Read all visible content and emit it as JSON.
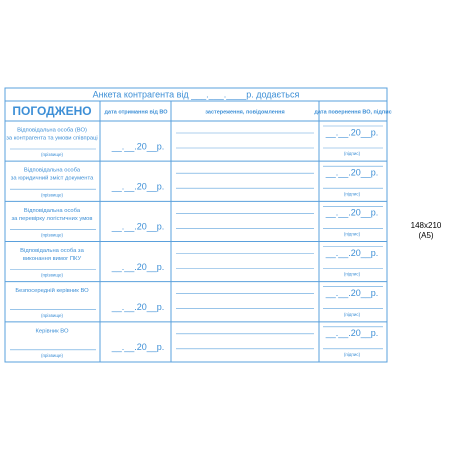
{
  "form": {
    "title": "Анкета контрагента від ___.___.____р. додається",
    "headers": [
      "ПОГОДЖЕНО",
      "дата отримання від ВО",
      "застереження, повідомлення",
      "дата повернення ВО, підпис"
    ],
    "rows": [
      {
        "label_lines": [
          "Відповідальна особа (ВО)",
          "за контрагента та умови співпраці"
        ],
        "surname_hint": "(прізвище)",
        "date": "__.__.20__р.",
        "return_date": "__.__.20__р.",
        "signature_hint": "(підпис)"
      },
      {
        "label_lines": [
          "Відповідальна особа",
          "за юридичний зміст документа"
        ],
        "surname_hint": "(прізвище)",
        "date": "__.__.20__р.",
        "return_date": "__.__.20__р.",
        "signature_hint": "(підпис)"
      },
      {
        "label_lines": [
          "Відповідальна особа",
          "за перевірку логістичних умов"
        ],
        "surname_hint": "(прізвище)",
        "date": "__.__.20__р.",
        "return_date": "__.__.20__р.",
        "signature_hint": "(підпис)"
      },
      {
        "label_lines": [
          "Відповідальна особа за",
          "виконання вимог ПКУ"
        ],
        "surname_hint": "(прізвище)",
        "date": "__.__.20__р.",
        "return_date": "__.__.20__р.",
        "signature_hint": "(підпис)"
      },
      {
        "label_lines": [
          "Безпосередній керівник ВО"
        ],
        "surname_hint": "(прізвище)",
        "date": "__.__.20__р.",
        "return_date": "__.__.20__р.",
        "signature_hint": "(підпис)"
      },
      {
        "label_lines": [
          "Керівник ВО"
        ],
        "surname_hint": "(прізвище)",
        "date": "__.__.20__р.",
        "return_date": "__.__.20__р.",
        "signature_hint": "(підпис)"
      }
    ]
  },
  "side_note": {
    "size": "148x210",
    "format": "(A5)"
  }
}
